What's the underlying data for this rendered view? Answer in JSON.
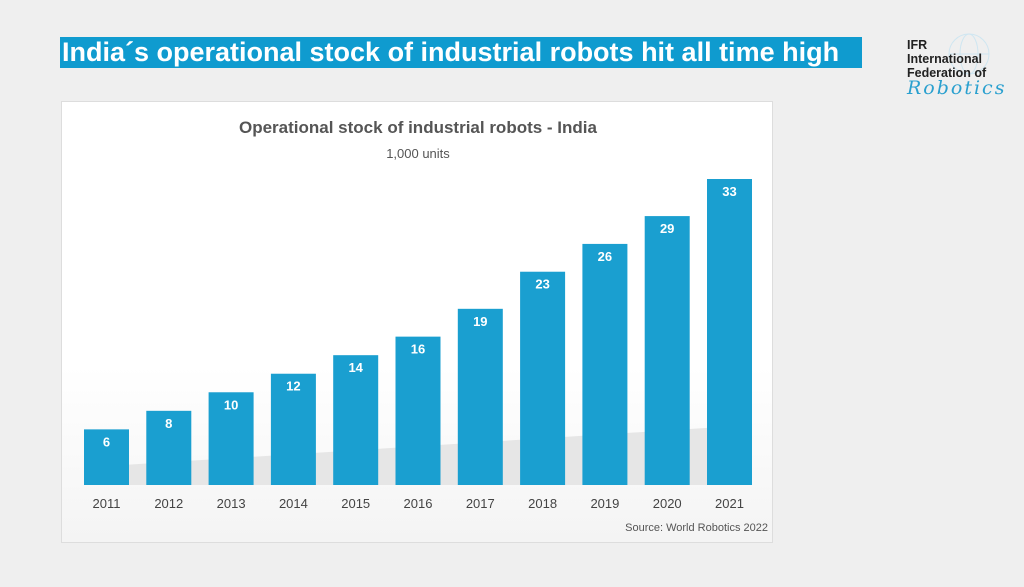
{
  "banner": {
    "title": "India´s operational stock of industrial robots hit all time high"
  },
  "logo": {
    "line1": "IFR",
    "line2": "International",
    "line3": "Federation of",
    "line4": "Robotics"
  },
  "colors": {
    "accent": "#0f9bcf",
    "bar": "#1a9fd0"
  },
  "chart_data": {
    "type": "bar",
    "title": "Operational stock of industrial robots - India",
    "subtitle": "1,000 units",
    "categories": [
      "2011",
      "2012",
      "2013",
      "2014",
      "2015",
      "2016",
      "2017",
      "2018",
      "2019",
      "2020",
      "2021"
    ],
    "values": [
      6,
      8,
      10,
      12,
      14,
      16,
      19,
      23,
      26,
      29,
      33
    ],
    "ylim": [
      0,
      33
    ],
    "grid": false,
    "data_labels": true,
    "source": "Source: World Robotics 2022"
  }
}
